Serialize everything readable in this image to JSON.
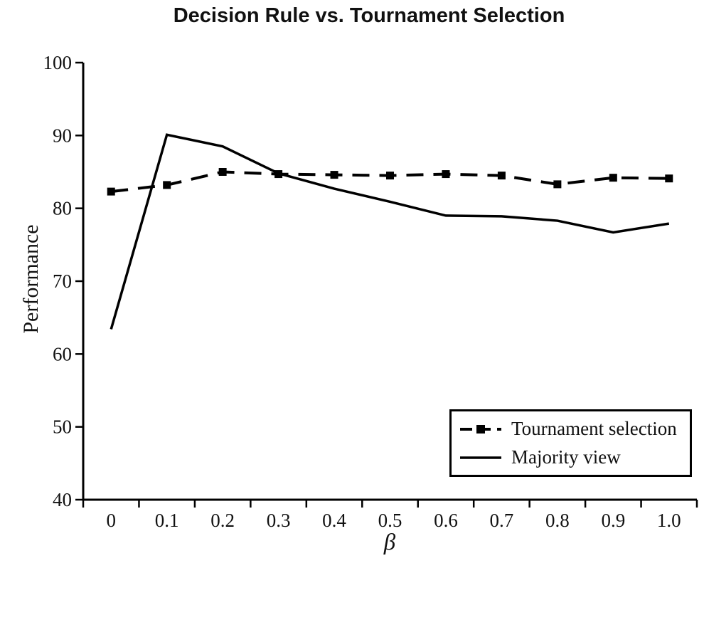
{
  "page": {
    "background": "#ffffff",
    "ink_color": "#000000"
  },
  "chart_data": {
    "type": "line",
    "title": "Decision Rule vs. Tournament Selection",
    "xlabel": "β",
    "ylabel": "Performance",
    "categories": [
      "0",
      "0.1",
      "0.2",
      "0.3",
      "0.4",
      "0.5",
      "0.6",
      "0.7",
      "0.8",
      "0.9",
      "1.0"
    ],
    "x_values": [
      0,
      0.1,
      0.2,
      0.3,
      0.4,
      0.5,
      0.6,
      0.7,
      0.8,
      0.9,
      1.0
    ],
    "ylim": [
      40,
      100
    ],
    "yticks": [
      40,
      50,
      60,
      70,
      80,
      90,
      100
    ],
    "grid": false,
    "legend_position": "lower right",
    "series": [
      {
        "name": "Tournament selection",
        "style": "dashed",
        "marker": "square",
        "color": "#000000",
        "values": [
          82.3,
          83.2,
          85.0,
          84.7,
          84.6,
          84.5,
          84.7,
          84.5,
          83.3,
          84.2,
          84.1
        ]
      },
      {
        "name": "Majority view",
        "style": "solid",
        "marker": "none",
        "color": "#000000",
        "values": [
          63.4,
          90.1,
          88.5,
          84.8,
          82.7,
          80.9,
          79.0,
          78.9,
          78.3,
          76.7,
          77.9
        ]
      }
    ]
  }
}
